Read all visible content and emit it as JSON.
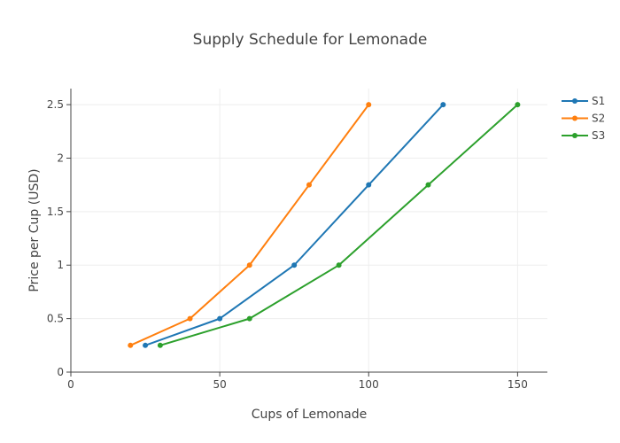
{
  "chart_data": {
    "type": "line",
    "title": "Supply Schedule for Lemonade",
    "xlabel": "Cups of Lemonade",
    "ylabel": "Price per Cup (USD)",
    "xlim": [
      0,
      160
    ],
    "ylim": [
      0,
      2.65
    ],
    "xticks": [
      0,
      50,
      100,
      150
    ],
    "yticks": [
      0,
      0.5,
      1,
      1.5,
      2,
      2.5
    ],
    "xtick_labels": [
      "0",
      "50",
      "100",
      "150"
    ],
    "ytick_labels": [
      "0",
      "0.5",
      "1",
      "1.5",
      "2",
      "2.5"
    ],
    "grid": true,
    "legend_position": "top-right",
    "series": [
      {
        "name": "S1",
        "color": "#1f77b4",
        "x": [
          25,
          50,
          75,
          100,
          125
        ],
        "y": [
          0.25,
          0.5,
          1,
          1.75,
          2.5
        ]
      },
      {
        "name": "S2",
        "color": "#ff7f0e",
        "x": [
          20,
          40,
          60,
          80,
          100
        ],
        "y": [
          0.25,
          0.5,
          1,
          1.75,
          2.5
        ]
      },
      {
        "name": "S3",
        "color": "#2ca02c",
        "x": [
          30,
          60,
          90,
          120,
          150
        ],
        "y": [
          0.25,
          0.5,
          1,
          1.75,
          2.5
        ]
      }
    ]
  }
}
